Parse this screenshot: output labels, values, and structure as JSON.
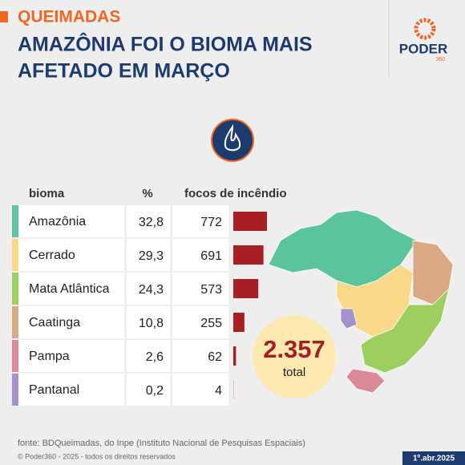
{
  "chart_data": {
    "type": "bar",
    "kicker": "QUEIMADAS",
    "title": [
      "AMAZÔNIA FOI O BIOMA MAIS",
      "AFETADO EM MARÇO"
    ],
    "logo": "PODER",
    "logo_sub": "360",
    "column_headers": [
      "bioma",
      "%",
      "focos de incêndio"
    ],
    "categories": [
      "Amazônia",
      "Cerrado",
      "Mata Atlântica",
      "Caatinga",
      "Pampa",
      "Pantanal"
    ],
    "category_colors": [
      "#5cc49a",
      "#f8d98a",
      "#9ccf5e",
      "#d9a983",
      "#d98a96",
      "#a592cc"
    ],
    "series": [
      {
        "name": "%",
        "values": [
          32.8,
          29.3,
          24.3,
          10.8,
          2.6,
          0.2
        ],
        "value_labels": [
          "32,8",
          "29,3",
          "24,3",
          "10,8",
          "2,6",
          "0,2"
        ]
      },
      {
        "name": "focos de incêndio",
        "values": [
          772,
          691,
          573,
          255,
          62,
          4
        ],
        "color": "#a51f24"
      }
    ],
    "total": {
      "value": 2357,
      "label": "2.357"
    },
    "total_label": "total",
    "source": "fonte: BDQueimadas, do Inpe (Instituto Nacional de Pesquisas Espaciais)",
    "copyright": "© Poder360 - 2025 - todos os direitos reservados",
    "date": "1º.abr.2025"
  }
}
